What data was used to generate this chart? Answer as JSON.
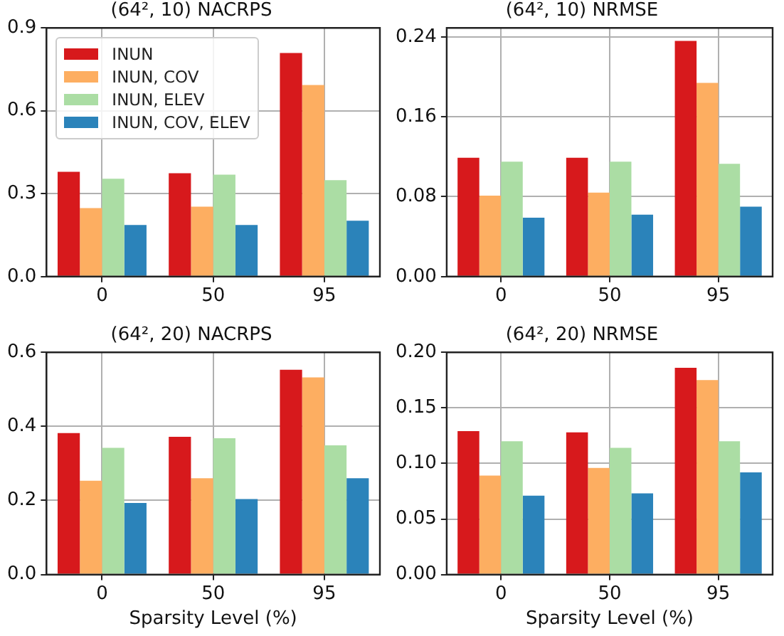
{
  "chart_data": [
    {
      "type": "bar",
      "title": "(64², 10) NACRPS",
      "categories": [
        "0",
        "50",
        "95"
      ],
      "ylim": [
        0,
        0.9
      ],
      "yticks": [
        {
          "value": 0,
          "label": "0.0"
        },
        {
          "value": 0.3,
          "label": "0.3"
        },
        {
          "value": 0.6,
          "label": "0.6"
        },
        {
          "value": 0.9,
          "label": "0.9"
        }
      ],
      "grid": true,
      "legend": "top left",
      "series": [
        {
          "name": "INUN",
          "color": "#d7191c",
          "values": [
            0.379,
            0.374,
            0.809
          ]
        },
        {
          "name": "INUN, COV",
          "color": "#fdae61",
          "values": [
            0.248,
            0.253,
            0.693
          ]
        },
        {
          "name": "INUN, ELEV",
          "color": "#abdda4",
          "values": [
            0.354,
            0.369,
            0.349
          ]
        },
        {
          "name": "INUN, COV, ELEV",
          "color": "#2b83ba",
          "values": [
            0.187,
            0.187,
            0.202
          ]
        }
      ]
    },
    {
      "type": "bar",
      "title": "(64², 10) NRMSE",
      "categories": [
        "0",
        "50",
        "95"
      ],
      "ylim": [
        0,
        0.249
      ],
      "yticks": [
        {
          "value": 0,
          "label": "0.00"
        },
        {
          "value": 0.08,
          "label": "0.08"
        },
        {
          "value": 0.16,
          "label": "0.16"
        },
        {
          "value": 0.24,
          "label": "0.24"
        }
      ],
      "grid": true,
      "series": [
        {
          "color": "#d7191c",
          "values": [
            0.119,
            0.119,
            0.236
          ]
        },
        {
          "color": "#fdae61",
          "values": [
            0.081,
            0.084,
            0.194
          ]
        },
        {
          "color": "#abdda4",
          "values": [
            0.115,
            0.115,
            0.113
          ]
        },
        {
          "color": "#2b83ba",
          "values": [
            0.059,
            0.062,
            0.07
          ]
        }
      ]
    },
    {
      "type": "bar",
      "title": "(64², 20) NACRPS",
      "xlabel": "Sparsity Level (%)",
      "categories": [
        "0",
        "50",
        "95"
      ],
      "ylim": [
        0,
        0.6
      ],
      "yticks": [
        {
          "value": 0,
          "label": "0.0"
        },
        {
          "value": 0.2,
          "label": "0.2"
        },
        {
          "value": 0.4,
          "label": "0.4"
        },
        {
          "value": 0.6,
          "label": "0.6"
        }
      ],
      "grid": true,
      "series": [
        {
          "color": "#d7191c",
          "values": [
            0.382,
            0.372,
            0.553
          ]
        },
        {
          "color": "#fdae61",
          "values": [
            0.253,
            0.26,
            0.532
          ]
        },
        {
          "color": "#abdda4",
          "values": [
            0.342,
            0.368,
            0.349
          ]
        },
        {
          "color": "#2b83ba",
          "values": [
            0.193,
            0.204,
            0.26
          ]
        }
      ]
    },
    {
      "type": "bar",
      "title": "(64², 20) NRMSE",
      "xlabel": "Sparsity Level (%)",
      "categories": [
        "0",
        "50",
        "95"
      ],
      "ylim": [
        0,
        0.2
      ],
      "yticks": [
        {
          "value": 0,
          "label": "0.00"
        },
        {
          "value": 0.05,
          "label": "0.05"
        },
        {
          "value": 0.1,
          "label": "0.10"
        },
        {
          "value": 0.15,
          "label": "0.15"
        },
        {
          "value": 0.2,
          "label": "0.20"
        }
      ],
      "grid": true,
      "series": [
        {
          "color": "#d7191c",
          "values": [
            0.129,
            0.128,
            0.186
          ]
        },
        {
          "color": "#fdae61",
          "values": [
            0.089,
            0.096,
            0.175
          ]
        },
        {
          "color": "#abdda4",
          "values": [
            0.12,
            0.114,
            0.12
          ]
        },
        {
          "color": "#2b83ba",
          "values": [
            0.071,
            0.073,
            0.092
          ]
        }
      ]
    }
  ]
}
